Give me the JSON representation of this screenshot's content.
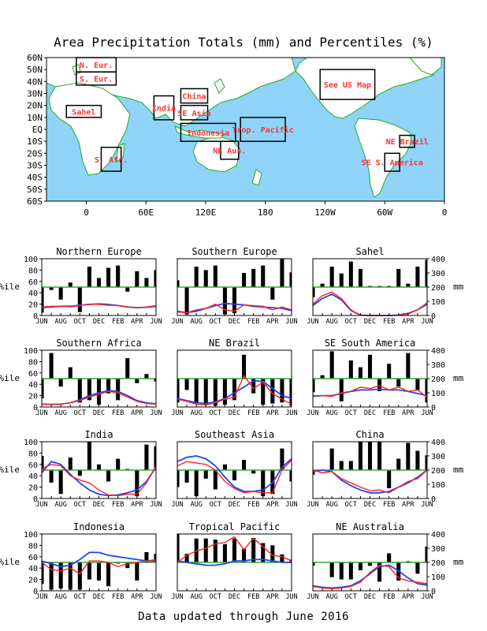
{
  "title": "Area Precipitation Totals (mm) and Percentiles (%)",
  "footer": "Data updated through June 2016",
  "colors": {
    "ocean": "#8fd4f8",
    "land": "#ffffff",
    "coast": "#22aa22",
    "region_label": "#ff3333",
    "percentile_bar": "#000000",
    "median_line": "#33aa33",
    "total_line": "#ff2222",
    "normal_line": "#2244ee"
  },
  "map": {
    "lat_labels": [
      "60N",
      "50N",
      "40N",
      "30N",
      "20N",
      "10N",
      "EQ",
      "10S",
      "20S",
      "30S",
      "40S",
      "50S",
      "60S"
    ],
    "lon_labels": [
      "0",
      "60E",
      "120E",
      "180",
      "120W",
      "60W",
      "0"
    ],
    "lat_values": [
      60,
      50,
      40,
      30,
      20,
      10,
      0,
      -10,
      -20,
      -30,
      -40,
      -50,
      -60
    ],
    "lon_values": [
      0,
      60,
      120,
      180,
      240,
      300,
      360
    ],
    "regions": [
      {
        "label": "N. Eur.",
        "lon": [
          -10,
          30
        ],
        "lat": [
          48,
          60
        ]
      },
      {
        "label": "S. Eur.",
        "lon": [
          -10,
          30
        ],
        "lat": [
          37,
          48
        ]
      },
      {
        "label": "Sahel",
        "lon": [
          -20,
          15
        ],
        "lat": [
          10,
          20
        ]
      },
      {
        "label": "India",
        "lon": [
          68,
          88
        ],
        "lat": [
          8,
          28
        ]
      },
      {
        "label": "China",
        "lon": [
          95,
          122
        ],
        "lat": [
          22,
          34
        ]
      },
      {
        "label": "SE Asia",
        "lon": [
          95,
          122
        ],
        "lat": [
          8,
          20
        ]
      },
      {
        "label": "Indonesia",
        "lon": [
          95,
          150
        ],
        "lat": [
          -10,
          5
        ]
      },
      {
        "label": "NE Aus.",
        "lon": [
          135,
          153
        ],
        "lat": [
          -25,
          -10
        ]
      },
      {
        "label": "Trop. Pacific",
        "lon": [
          155,
          200
        ],
        "lat": [
          -10,
          10
        ]
      },
      {
        "label": "See US Map",
        "lon": [
          235,
          290
        ],
        "lat": [
          25,
          50
        ]
      },
      {
        "label": "NE Brazil",
        "lon": [
          315,
          330
        ],
        "lat": [
          -15,
          -5
        ]
      },
      {
        "label": "SE S. America",
        "lon": [
          300,
          315
        ],
        "lat": [
          -35,
          -20
        ]
      },
      {
        "label": "S. Afr.",
        "lon": [
          15,
          35
        ],
        "lat": [
          -35,
          -15
        ]
      }
    ]
  },
  "chart_data": [
    {
      "type": "bar",
      "title": "Northern Europe",
      "ylabel_left": "%ile",
      "ylabel_right": "",
      "categories": [
        "JUN",
        "JUL",
        "AUG",
        "SEP",
        "OCT",
        "NOV",
        "DEC",
        "JAN",
        "FEB",
        "MAR",
        "APR",
        "MAY",
        "JUN"
      ],
      "tick_labels": [
        "JUN",
        "AUG",
        "OCT",
        "DEC",
        "FEB",
        "APR",
        "JUN"
      ],
      "ylim_percentile": [
        0,
        100
      ],
      "ylim_mm": [
        0,
        400
      ],
      "median": 50,
      "percentiles": [
        5,
        45,
        28,
        58,
        6,
        86,
        66,
        84,
        88,
        42,
        78,
        66,
        80
      ],
      "total_mm": [
        60,
        65,
        65,
        60,
        70,
        80,
        78,
        72,
        70,
        60,
        55,
        60,
        70
      ],
      "normal_mm": [
        55,
        60,
        65,
        65,
        72,
        78,
        82,
        78,
        70,
        60,
        55,
        58,
        65
      ]
    },
    {
      "type": "bar",
      "title": "Southern Europe",
      "ylabel_left": "",
      "ylabel_right": "",
      "categories": [
        "JUN",
        "JUL",
        "AUG",
        "SEP",
        "OCT",
        "NOV",
        "DEC",
        "JAN",
        "FEB",
        "MAR",
        "APR",
        "MAY",
        "JUN"
      ],
      "tick_labels": [
        "JUN",
        "AUG",
        "OCT",
        "DEC",
        "FEB",
        "APR",
        "JUN"
      ],
      "ylim_percentile": [
        0,
        100
      ],
      "ylim_mm": [
        0,
        400
      ],
      "median": 50,
      "percentiles": [
        62,
        2,
        86,
        80,
        88,
        2,
        4,
        75,
        82,
        88,
        28,
        100,
        76
      ],
      "total_mm": [
        25,
        20,
        40,
        50,
        80,
        40,
        30,
        75,
        70,
        65,
        40,
        60,
        40
      ],
      "normal_mm": [
        30,
        20,
        30,
        50,
        70,
        85,
        80,
        75,
        65,
        60,
        55,
        50,
        35
      ]
    },
    {
      "type": "bar",
      "title": "Sahel",
      "ylabel_left": "",
      "ylabel_right": "mm",
      "categories": [
        "JUN",
        "JUL",
        "AUG",
        "SEP",
        "OCT",
        "NOV",
        "DEC",
        "JAN",
        "FEB",
        "MAR",
        "APR",
        "MAY",
        "JUN"
      ],
      "tick_labels": [
        "JUN",
        "AUG",
        "OCT",
        "DEC",
        "FEB",
        "APR",
        "JUN"
      ],
      "ylim_percentile": [
        0,
        100
      ],
      "ylim_mm": [
        0,
        400
      ],
      "median": 50,
      "percentiles": [
        32,
        56,
        86,
        74,
        95,
        82,
        52,
        52,
        52,
        82,
        56,
        86,
        98
      ],
      "total_mm": [
        80,
        140,
        165,
        120,
        40,
        2,
        0,
        0,
        0,
        2,
        10,
        40,
        90
      ],
      "normal_mm": [
        70,
        120,
        150,
        110,
        35,
        3,
        0,
        0,
        0,
        3,
        15,
        40,
        80
      ]
    },
    {
      "type": "bar",
      "title": "Southern Africa",
      "ylabel_left": "%ile",
      "ylabel_right": "",
      "categories": [
        "JUN",
        "JUL",
        "AUG",
        "SEP",
        "OCT",
        "NOV",
        "DEC",
        "JAN",
        "FEB",
        "MAR",
        "APR",
        "MAY",
        "JUN"
      ],
      "tick_labels": [
        "JUN",
        "AUG",
        "OCT",
        "DEC",
        "FEB",
        "APR",
        "JUN"
      ],
      "ylim_percentile": [
        0,
        100
      ],
      "ylim_mm": [
        0,
        400
      ],
      "median": 50,
      "percentiles": [
        15,
        95,
        36,
        70,
        8,
        12,
        4,
        24,
        12,
        86,
        42,
        58,
        45
      ],
      "total_mm": [
        20,
        20,
        20,
        30,
        45,
        70,
        90,
        110,
        100,
        70,
        40,
        25,
        20
      ],
      "normal_mm": [
        20,
        18,
        20,
        30,
        50,
        80,
        100,
        115,
        110,
        80,
        45,
        30,
        22
      ]
    },
    {
      "type": "bar",
      "title": "NE Brazil",
      "ylabel_left": "",
      "ylabel_right": "",
      "categories": [
        "JUN",
        "JUL",
        "AUG",
        "SEP",
        "OCT",
        "NOV",
        "DEC",
        "JAN",
        "FEB",
        "MAR",
        "APR",
        "MAY",
        "JUN"
      ],
      "tick_labels": [
        "JUN",
        "AUG",
        "OCT",
        "DEC",
        "FEB",
        "APR",
        "JUN"
      ],
      "ylim_percentile": [
        0,
        100
      ],
      "ylim_mm": [
        0,
        400
      ],
      "median": 50,
      "percentiles": [
        8,
        30,
        6,
        4,
        2,
        4,
        12,
        92,
        24,
        4,
        6,
        8,
        2
      ],
      "total_mm": [
        55,
        40,
        20,
        15,
        30,
        55,
        70,
        220,
        130,
        175,
        95,
        55,
        20
      ],
      "normal_mm": [
        60,
        45,
        30,
        25,
        35,
        60,
        100,
        140,
        185,
        180,
        130,
        80,
        60
      ]
    },
    {
      "type": "bar",
      "title": "SE South America",
      "ylabel_left": "",
      "ylabel_right": "mm",
      "categories": [
        "JUN",
        "JUL",
        "AUG",
        "SEP",
        "OCT",
        "NOV",
        "DEC",
        "JAN",
        "FEB",
        "MAR",
        "APR",
        "MAY",
        "JUN"
      ],
      "tick_labels": [
        "JUN",
        "AUG",
        "OCT",
        "DEC",
        "FEB",
        "APR",
        "JUN"
      ],
      "ylim_percentile": [
        0,
        100
      ],
      "ylim_mm": [
        0,
        400
      ],
      "median": 50,
      "percentiles": [
        26,
        56,
        98,
        10,
        82,
        70,
        92,
        28,
        76,
        36,
        95,
        30,
        8
      ],
      "total_mm": [
        80,
        80,
        75,
        100,
        110,
        140,
        130,
        150,
        120,
        140,
        110,
        120,
        70
      ],
      "normal_mm": [
        75,
        80,
        80,
        95,
        110,
        120,
        120,
        125,
        120,
        120,
        110,
        95,
        80
      ]
    },
    {
      "type": "bar",
      "title": "India",
      "ylabel_left": "%ile",
      "ylabel_right": "",
      "categories": [
        "JUN",
        "JUL",
        "AUG",
        "SEP",
        "OCT",
        "NOV",
        "DEC",
        "JAN",
        "FEB",
        "MAR",
        "APR",
        "MAY",
        "JUN"
      ],
      "tick_labels": [
        "JUN",
        "AUG",
        "OCT",
        "DEC",
        "FEB",
        "APR",
        "JUN"
      ],
      "ylim_percentile": [
        0,
        100
      ],
      "ylim_mm": [
        0,
        400
      ],
      "median": 50,
      "percentiles": [
        75,
        28,
        8,
        72,
        40,
        100,
        60,
        30,
        70,
        52,
        4,
        95,
        92
      ],
      "total_mm": [
        210,
        240,
        230,
        160,
        130,
        110,
        60,
        25,
        20,
        30,
        30,
        110,
        230
      ],
      "normal_mm": [
        180,
        260,
        240,
        170,
        110,
        60,
        30,
        20,
        25,
        40,
        60,
        120,
        220
      ]
    },
    {
      "type": "bar",
      "title": "Southeast Asia",
      "ylabel_left": "",
      "ylabel_right": "",
      "categories": [
        "JUN",
        "JUL",
        "AUG",
        "SEP",
        "OCT",
        "NOV",
        "DEC",
        "JAN",
        "FEB",
        "MAR",
        "APR",
        "MAY",
        "JUN"
      ],
      "tick_labels": [
        "JUN",
        "AUG",
        "OCT",
        "DEC",
        "FEB",
        "APR",
        "JUN"
      ],
      "ylim_percentile": [
        0,
        100
      ],
      "ylim_mm": [
        0,
        400
      ],
      "median": 50,
      "percentiles": [
        20,
        28,
        4,
        35,
        16,
        60,
        32,
        68,
        44,
        4,
        8,
        88,
        30
      ],
      "total_mm": [
        230,
        260,
        250,
        240,
        200,
        120,
        70,
        40,
        50,
        40,
        40,
        200,
        270
      ],
      "normal_mm": [
        260,
        290,
        300,
        280,
        230,
        150,
        80,
        50,
        50,
        60,
        110,
        220,
        280
      ]
    },
    {
      "type": "bar",
      "title": "China",
      "ylabel_left": "",
      "ylabel_right": "mm",
      "categories": [
        "JUN",
        "JUL",
        "AUG",
        "SEP",
        "OCT",
        "NOV",
        "DEC",
        "JAN",
        "FEB",
        "MAR",
        "APR",
        "MAY",
        "JUN"
      ],
      "tick_labels": [
        "JUN",
        "AUG",
        "OCT",
        "DEC",
        "FEB",
        "APR",
        "JUN"
      ],
      "ylim_percentile": [
        0,
        100
      ],
      "ylim_mm": [
        0,
        400
      ],
      "median": 50,
      "percentiles": [
        42,
        50,
        88,
        66,
        66,
        100,
        100,
        100,
        18,
        70,
        98,
        84,
        76
      ],
      "total_mm": [
        200,
        180,
        190,
        140,
        110,
        80,
        55,
        60,
        40,
        80,
        120,
        140,
        200
      ],
      "normal_mm": [
        190,
        200,
        190,
        130,
        90,
        60,
        40,
        40,
        50,
        80,
        110,
        150,
        200
      ]
    },
    {
      "type": "bar",
      "title": "Indonesia",
      "ylabel_left": "%ile",
      "ylabel_right": "",
      "categories": [
        "JUN",
        "JUL",
        "AUG",
        "SEP",
        "OCT",
        "NOV",
        "DEC",
        "JAN",
        "FEB",
        "MAR",
        "APR",
        "MAY",
        "JUN"
      ],
      "tick_labels": [
        "JUN",
        "AUG",
        "OCT",
        "DEC",
        "FEB",
        "APR",
        "JUN"
      ],
      "ylim_percentile": [
        0,
        100
      ],
      "ylim_mm": [
        0,
        400
      ],
      "median": 50,
      "percentiles": [
        12,
        2,
        4,
        2,
        2,
        20,
        18,
        8,
        48,
        40,
        18,
        68,
        65
      ],
      "total_mm": [
        200,
        150,
        140,
        160,
        120,
        210,
        210,
        200,
        170,
        190,
        200,
        210,
        220
      ],
      "normal_mm": [
        210,
        190,
        170,
        180,
        220,
        270,
        270,
        250,
        240,
        230,
        220,
        210,
        210
      ]
    },
    {
      "type": "bar",
      "title": "Tropical Pacific",
      "ylabel_left": "",
      "ylabel_right": "",
      "categories": [
        "JUN",
        "JUL",
        "AUG",
        "SEP",
        "OCT",
        "NOV",
        "DEC",
        "JAN",
        "FEB",
        "MAR",
        "APR",
        "MAY",
        "JUN"
      ],
      "tick_labels": [
        "JUN",
        "AUG",
        "OCT",
        "DEC",
        "FEB",
        "APR",
        "JUN"
      ],
      "ylim_percentile": [
        0,
        100
      ],
      "ylim_mm": [
        0,
        400
      ],
      "median": 50,
      "percentiles": [
        100,
        65,
        92,
        92,
        90,
        82,
        92,
        74,
        93,
        84,
        80,
        64,
        55
      ],
      "total_mm": [
        200,
        250,
        280,
        300,
        330,
        340,
        380,
        290,
        370,
        310,
        250,
        240,
        210
      ],
      "normal_mm": [
        210,
        200,
        190,
        180,
        180,
        190,
        210,
        210,
        220,
        220,
        210,
        200,
        200
      ]
    },
    {
      "type": "bar",
      "title": "NE Australia",
      "ylabel_left": "",
      "ylabel_right": "mm",
      "categories": [
        "JUN",
        "JUL",
        "AUG",
        "SEP",
        "OCT",
        "NOV",
        "DEC",
        "JAN",
        "FEB",
        "MAR",
        "APR",
        "MAY",
        "JUN"
      ],
      "tick_labels": [
        "JUN",
        "AUG",
        "OCT",
        "DEC",
        "FEB",
        "APR",
        "JUN"
      ],
      "ylim_percentile": [
        0,
        100
      ],
      "ylim_mm": [
        0,
        400
      ],
      "median": 50,
      "percentiles": [
        44,
        50,
        24,
        20,
        20,
        36,
        44,
        16,
        66,
        18,
        52,
        30,
        78
      ],
      "total_mm": [
        30,
        20,
        15,
        20,
        30,
        60,
        130,
        180,
        170,
        90,
        70,
        60,
        50
      ],
      "normal_mm": [
        35,
        25,
        20,
        25,
        35,
        70,
        120,
        170,
        180,
        140,
        90,
        50,
        40
      ]
    }
  ]
}
